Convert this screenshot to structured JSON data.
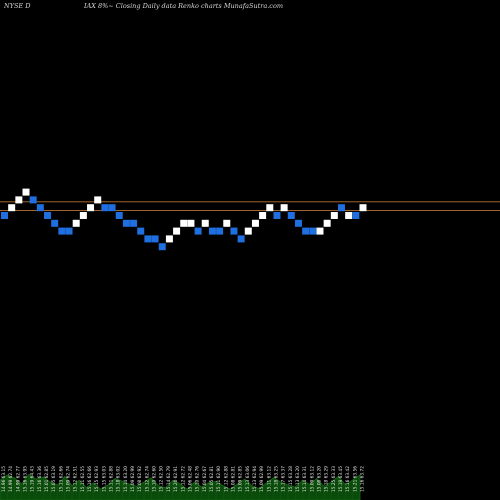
{
  "header": {
    "exchange_symbol": "NYSE D",
    "caption": "IAX  8%~  Closing Daily data  Renko  charts MunafaSutra.com"
  },
  "colors": {
    "up": "#ffffff",
    "down": "#1f6fe0",
    "reference_line": "#b87333",
    "volume_fill": "#0a4a0a",
    "volume_edge": "#1a7a1a",
    "background": "#000000"
  },
  "chart_data": {
    "type": "renko",
    "brick_direction": [
      "down",
      "up",
      "up",
      "up",
      "down",
      "down",
      "down",
      "down",
      "down",
      "down",
      "up",
      "up",
      "up",
      "up",
      "down",
      "down",
      "down",
      "down",
      "down",
      "down",
      "down",
      "down",
      "down",
      "up",
      "up",
      "up",
      "up",
      "down",
      "up",
      "down",
      "down",
      "up",
      "down",
      "down",
      "up",
      "up",
      "up",
      "up",
      "down",
      "up",
      "down",
      "down",
      "down",
      "down",
      "up",
      "up",
      "up",
      "down",
      "up",
      "down",
      "up"
    ],
    "brick_level": [
      0,
      1,
      2,
      3,
      2,
      1,
      0,
      -1,
      -2,
      -2,
      -1,
      0,
      1,
      2,
      1,
      1,
      0,
      -1,
      -1,
      -2,
      -3,
      -3,
      -4,
      -3,
      -2,
      -1,
      -1,
      -2,
      -1,
      -2,
      -2,
      -1,
      -2,
      -3,
      -2,
      -1,
      0,
      1,
      0,
      1,
      0,
      -1,
      -2,
      -2,
      -2,
      -1,
      0,
      1,
      0,
      0,
      1
    ],
    "reference_levels": [
      0.65,
      1.75
    ],
    "bar_labels": [
      "14.96 63.15",
      "14.99 62.74",
      "14.99 62.77",
      "15.16 63.95",
      "15.19 64.43",
      "15.16 63.36",
      "15.01 62.85",
      "15.05 63.19",
      "15.13 62.66",
      "15.09 62.74",
      "15.12 62.51",
      "15.11 62.55",
      "15.16 62.66",
      "15.15 62.93",
      "15.15 63.03",
      "15.11 62.88",
      "15.18 63.02",
      "15.14 63.20",
      "15.09 62.99",
      "15.08 62.92",
      "15.12 62.74",
      "15.10 62.60",
      "15.12 62.50",
      "15.14 62.79",
      "15.20 62.91",
      "15.12 62.72",
      "15.06 62.48",
      "15.10 62.76",
      "15.04 62.67",
      "15.05 62.81",
      "15.11 62.90",
      "15.12 62.88",
      "15.08 62.81",
      "15.09 62.85",
      "15.13 63.06",
      "15.13 62.94",
      "15.09 62.99",
      "15.11 63.12",
      "15.18 63.25",
      "15.17 63.37",
      "15.15 63.28",
      "15.13 63.20",
      "15.14 63.31",
      "15.09 63.12",
      "15.08 63.20",
      "15.18 63.29",
      "15.25 63.33",
      "15.19 63.45",
      "15.16 63.42",
      "15.21 63.56",
      "15.16 63.72"
    ],
    "volume": [
      0.55,
      0.7,
      0.62,
      0.45,
      0.72,
      0.58,
      0.64,
      0.5,
      0.42,
      0.66,
      0.4,
      0.55,
      0.35,
      0.48,
      0.3,
      0.42,
      0.6,
      0.52,
      0.44,
      0.38,
      0.5,
      0.62,
      0.4,
      0.34,
      0.55,
      0.45,
      0.3,
      0.5,
      0.36,
      0.48,
      0.52,
      0.4,
      0.3,
      0.45,
      0.58,
      0.4,
      0.32,
      0.48,
      0.62,
      0.5,
      0.42,
      0.36,
      0.55,
      0.44,
      0.6,
      0.38,
      0.5,
      0.66,
      0.42,
      0.56,
      0.7
    ]
  }
}
